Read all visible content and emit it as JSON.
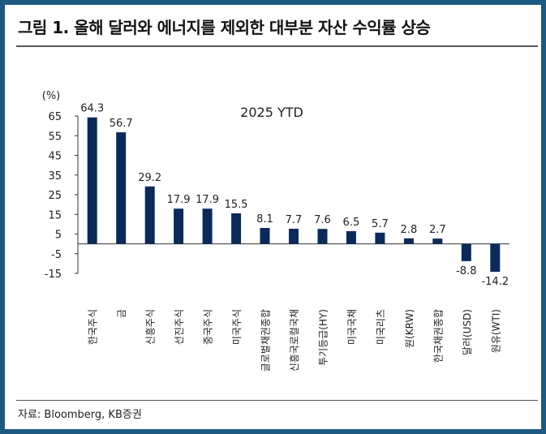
{
  "title": "그림 1. 올해 달러와 에너지를 제외한 대부분 자산 수익률 상승",
  "source": "자료: Bloomberg, KB증권",
  "chart_data": {
    "type": "bar",
    "title": "2025 YTD",
    "ylabel": "(%)",
    "xlabel": "",
    "ylim": [
      -15,
      65
    ],
    "yticks": [
      65,
      55,
      45,
      35,
      25,
      15,
      5,
      -5,
      -15
    ],
    "ytick_labels": [
      "65",
      "55",
      "45",
      "35",
      "25",
      "15",
      "5",
      "-5",
      "-15"
    ],
    "grid": false,
    "bar_color": "#0b2a5b",
    "categories": [
      "한국주식",
      "금",
      "신흥주식",
      "선진주식",
      "중국주식",
      "미국주식",
      "글로벌채권종합",
      "신흥국로컬국채",
      "투기등급(HY)",
      "미국국채",
      "미국리츠",
      "원(KRW)",
      "한국채권종합",
      "달러(USD)",
      "원유(WTI)"
    ],
    "values": [
      64.3,
      56.7,
      29.2,
      17.9,
      17.9,
      15.5,
      8.1,
      7.7,
      7.6,
      6.5,
      5.7,
      2.8,
      2.7,
      -8.8,
      -14.2
    ],
    "data_labels": [
      "64.3",
      "56.7",
      "29.2",
      "17.9",
      "17.9",
      "15.5",
      "8.1",
      "7.7",
      "7.6",
      "6.5",
      "5.7",
      "2.8",
      "2.7",
      "-8.8",
      "-14.2"
    ]
  }
}
